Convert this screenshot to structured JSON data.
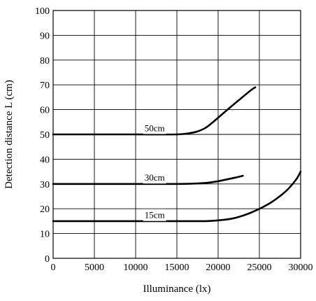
{
  "chart_data": {
    "type": "line",
    "title": "",
    "xlabel": "Illuminance (lx)",
    "ylabel": "Detection distance L (cm)",
    "xlim": [
      0,
      30000
    ],
    "ylim": [
      0,
      100
    ],
    "x_ticks": [
      0,
      5000,
      10000,
      15000,
      20000,
      25000,
      30000
    ],
    "x_tick_labels": [
      "0",
      "5000",
      "10000",
      "15000",
      "20000",
      "25000",
      "30000"
    ],
    "y_ticks": [
      0,
      10,
      20,
      30,
      40,
      50,
      60,
      70,
      80,
      90,
      100
    ],
    "y_tick_labels": [
      "0",
      "10",
      "20",
      "30",
      "40",
      "50",
      "60",
      "70",
      "80",
      "90",
      "100"
    ],
    "grid": true,
    "series": [
      {
        "name": "50cm",
        "x": [
          0,
          5000,
          10000,
          15000,
          16500,
          17500,
          18500,
          19500,
          21000,
          22500,
          24000,
          24500
        ],
        "y": [
          50,
          50,
          50,
          50,
          50.5,
          51.2,
          52.7,
          55.3,
          59.6,
          63.8,
          67.9,
          69
        ]
      },
      {
        "name": "30cm",
        "x": [
          0,
          5000,
          10000,
          15000,
          17500,
          19000,
          20000,
          21000,
          22000,
          23000
        ],
        "y": [
          30,
          30,
          30,
          30,
          30.2,
          30.6,
          31.1,
          31.8,
          32.5,
          33.3
        ]
      },
      {
        "name": "15cm",
        "x": [
          0,
          5000,
          10000,
          15000,
          18500,
          20000,
          21500,
          22500,
          23500,
          24500,
          25500,
          26500,
          27500,
          28500,
          29500,
          30000
        ],
        "y": [
          15,
          15,
          15,
          15,
          15,
          15.3,
          15.9,
          16.7,
          17.8,
          19.2,
          20.8,
          22.7,
          25.1,
          28,
          32,
          35
        ]
      }
    ],
    "series_labels": [
      {
        "text": "50cm",
        "x": 12300,
        "y": 52.7
      },
      {
        "text": "30cm",
        "x": 12300,
        "y": 32.7
      },
      {
        "text": "15cm",
        "x": 12300,
        "y": 17.6
      }
    ]
  }
}
